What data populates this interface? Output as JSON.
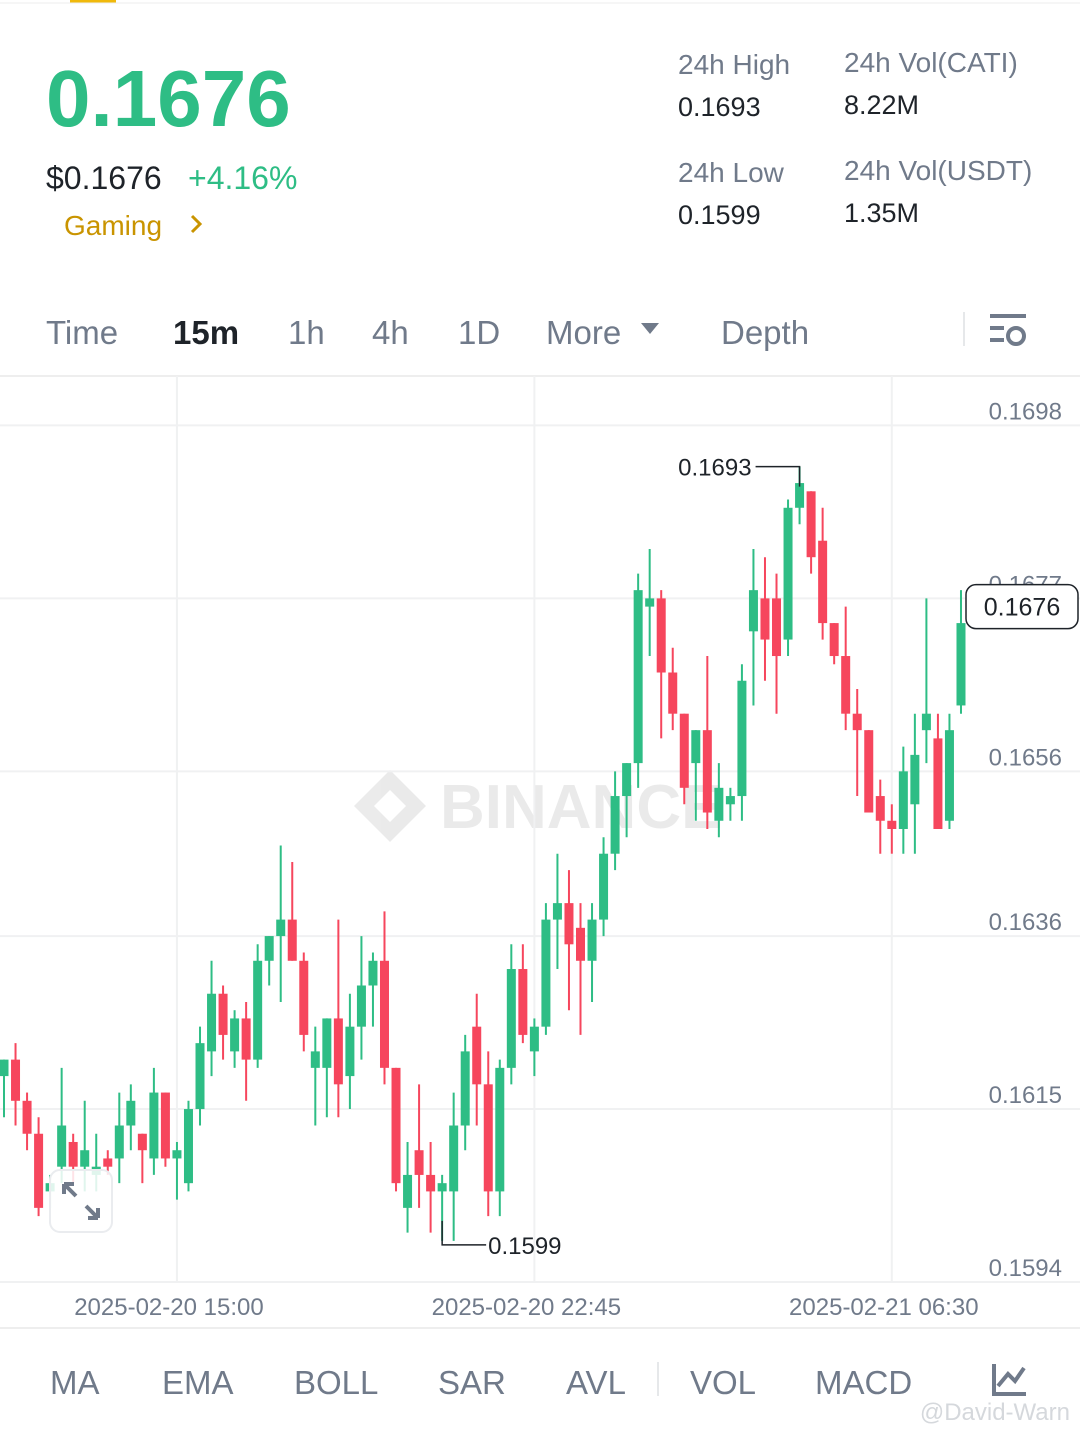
{
  "header": {
    "price": "0.1676",
    "price_usd": "$0.1676",
    "change": "+4.16%",
    "tag": "Gaming",
    "stats": [
      {
        "label": "24h High",
        "value": "0.1693"
      },
      {
        "label": "24h Vol(CATI)",
        "value": "8.22M"
      },
      {
        "label": "24h Low",
        "value": "0.1599"
      },
      {
        "label": "24h Vol(USDT)",
        "value": "1.35M"
      }
    ]
  },
  "tabs": [
    "Time",
    "15m",
    "1h",
    "4h",
    "1D",
    "More",
    "Depth"
  ],
  "indicators": [
    "MA",
    "EMA",
    "BOLL",
    "SAR",
    "AVL",
    "VOL",
    "MACD"
  ],
  "watermark": "BINANCE",
  "credit": "@David-Warn",
  "chart_data": {
    "type": "candlestick",
    "categories": [
      null,
      null,
      null,
      null,
      null,
      null,
      null,
      null,
      null,
      null,
      null,
      null,
      null,
      null,
      null,
      "2025-02-20 15:00",
      null,
      null,
      null,
      null,
      null,
      null,
      null,
      null,
      null,
      null,
      null,
      null,
      null,
      null,
      null,
      null,
      null,
      null,
      null,
      null,
      null,
      null,
      null,
      null,
      null,
      null,
      null,
      null,
      null,
      null,
      "2025-02-20 22:45",
      null,
      null,
      null,
      null,
      null,
      null,
      null,
      null,
      null,
      null,
      null,
      null,
      null,
      null,
      null,
      null,
      null,
      null,
      null,
      null,
      null,
      null,
      null,
      null,
      null,
      null,
      null,
      null,
      null,
      null,
      "2025-02-21 06:30",
      null,
      null,
      null,
      null,
      null,
      null,
      null
    ],
    "open": [
      0.1619,
      0.1621,
      0.1616,
      0.1612,
      0.1605,
      0.1608,
      0.1611,
      0.1608,
      0.1607,
      0.1609,
      0.1609,
      0.1613,
      0.1612,
      0.1609,
      0.1617,
      0.1609,
      0.1606,
      0.1615,
      0.1622,
      0.1629,
      0.1622,
      0.1626,
      0.1621,
      0.1633,
      0.1636,
      0.1638,
      0.1633,
      0.162,
      0.162,
      0.1626,
      0.1619,
      0.1625,
      0.163,
      0.1633,
      0.162,
      0.1603,
      0.161,
      0.1607,
      0.1605,
      0.1605,
      0.1613,
      0.1625,
      0.1618,
      0.1605,
      0.162,
      0.1632,
      0.1622,
      0.1625,
      0.1638,
      0.164,
      0.1637,
      0.1633,
      0.1638,
      0.1646,
      0.1653,
      0.1657,
      0.1676,
      0.1677,
      0.1668,
      0.1663,
      0.1657,
      0.1661,
      0.165,
      0.1652,
      0.1653,
      0.1673,
      0.1677,
      0.1677,
      0.1672,
      0.1688,
      0.169,
      0.1684,
      0.1674,
      0.167,
      0.1663,
      0.1661,
      0.1653,
      0.165,
      0.1649,
      0.1652,
      0.1661,
      0.166,
      0.165,
      0.1664,
      0.1675
    ],
    "high": [
      0.1621,
      0.1623,
      0.1617,
      0.1614,
      0.1607,
      0.162,
      0.1612,
      0.1616,
      0.1612,
      0.161,
      0.1617,
      0.1618,
      0.1612,
      0.162,
      0.1617,
      0.1611,
      0.1616,
      0.1625,
      0.1633,
      0.163,
      0.1627,
      0.1628,
      0.1635,
      0.1636,
      0.1647,
      0.1645,
      0.1634,
      0.1625,
      0.1626,
      0.1638,
      0.1629,
      0.1636,
      0.1634,
      0.1639,
      0.162,
      0.1611,
      0.1618,
      0.1611,
      0.1607,
      0.1617,
      0.1624,
      0.1629,
      0.1622,
      0.1621,
      0.1635,
      0.1635,
      0.1626,
      0.164,
      0.1646,
      0.1644,
      0.164,
      0.164,
      0.1648,
      0.1656,
      0.1657,
      0.168,
      0.1683,
      0.1678,
      0.1671,
      0.1663,
      0.1661,
      0.167,
      0.1657,
      0.1654,
      0.1669,
      0.1683,
      0.1682,
      0.168,
      0.1689,
      0.1693,
      0.169,
      0.1688,
      0.1674,
      0.1676,
      0.1666,
      0.1661,
      0.1655,
      0.1652,
      0.1659,
      0.1663,
      0.1677,
      0.1663,
      0.1663,
      0.1678,
      0.1678
    ],
    "low": [
      0.1614,
      0.1613,
      0.161,
      0.1602,
      0.1603,
      0.1606,
      0.1606,
      0.1605,
      0.1605,
      0.1607,
      0.1606,
      0.161,
      0.1606,
      0.1607,
      0.1608,
      0.1604,
      0.1605,
      0.1613,
      0.1619,
      0.1621,
      0.162,
      0.1616,
      0.162,
      0.163,
      0.1628,
      0.1633,
      0.1622,
      0.1613,
      0.1614,
      0.1614,
      0.1615,
      0.1621,
      0.1625,
      0.1618,
      0.1605,
      0.16,
      0.1603,
      0.16,
      0.1599,
      0.1599,
      0.161,
      0.1613,
      0.1602,
      0.1602,
      0.1618,
      0.1623,
      0.1619,
      0.1624,
      0.1632,
      0.1627,
      0.1624,
      0.1628,
      0.1636,
      0.1644,
      0.1648,
      0.1654,
      0.167,
      0.166,
      0.1661,
      0.1652,
      0.165,
      0.1649,
      0.1648,
      0.165,
      0.165,
      0.1664,
      0.1667,
      0.1663,
      0.167,
      0.1686,
      0.168,
      0.1672,
      0.1669,
      0.1661,
      0.1653,
      0.1651,
      0.1646,
      0.1646,
      0.1646,
      0.1646,
      0.1657,
      0.1649,
      0.1649,
      0.1663,
      0.1674
    ],
    "close": [
      0.1621,
      0.1616,
      0.1612,
      0.1603,
      0.1606,
      0.1613,
      0.1608,
      0.161,
      0.1608,
      0.1608,
      0.1613,
      0.1616,
      0.161,
      0.1617,
      0.1609,
      0.161,
      0.1615,
      0.1623,
      0.1629,
      0.1624,
      0.1626,
      0.1621,
      0.1633,
      0.1636,
      0.1638,
      0.1633,
      0.1624,
      0.1622,
      0.1626,
      0.1618,
      0.1625,
      0.163,
      0.1633,
      0.162,
      0.1606,
      0.1607,
      0.1607,
      0.1605,
      0.1606,
      0.1613,
      0.1622,
      0.1618,
      0.1605,
      0.162,
      0.1632,
      0.1624,
      0.1625,
      0.1638,
      0.164,
      0.1635,
      0.1633,
      0.1638,
      0.1646,
      0.1653,
      0.1657,
      0.1678,
      0.1677,
      0.1668,
      0.1663,
      0.1654,
      0.1661,
      0.1651,
      0.1654,
      0.1653,
      0.1667,
      0.1678,
      0.1672,
      0.167,
      0.1688,
      0.1691,
      0.1682,
      0.1674,
      0.167,
      0.1663,
      0.1661,
      0.1651,
      0.165,
      0.1649,
      0.1656,
      0.1658,
      0.1663,
      0.1649,
      0.1661,
      0.1674,
      0.1676
    ],
    "up_color": "#2ebd85",
    "down_color": "#f6465d",
    "ylim": [
      0.1594,
      0.1704
    ],
    "yticks": [
      0.1594,
      0.1615,
      0.1636,
      0.1656,
      0.1677,
      0.1698
    ],
    "grid": true,
    "max_label": 0.1693,
    "min_label": 0.1599,
    "last_price": 0.1676
  }
}
